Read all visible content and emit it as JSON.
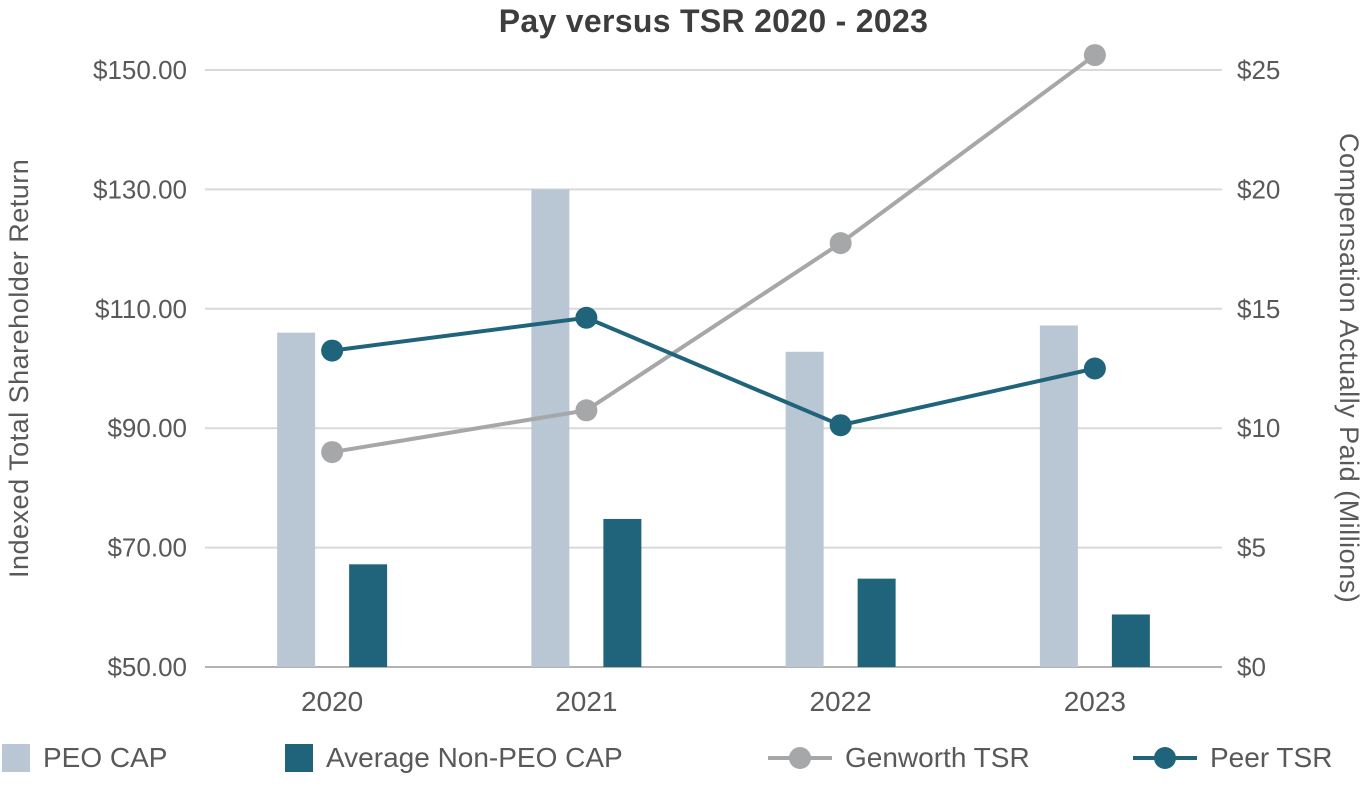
{
  "chart_data": {
    "type": "combo",
    "title": "Pay versus TSR 2020 - 2023",
    "categories": [
      "2020",
      "2021",
      "2022",
      "2023"
    ],
    "series": [
      {
        "name": "PEO CAP",
        "type": "bar",
        "axis": "right",
        "color": "#b9c6d3",
        "values": [
          14.0,
          20.0,
          13.2,
          14.3
        ]
      },
      {
        "name": "Average Non-PEO CAP",
        "type": "bar",
        "axis": "right",
        "color": "#20647c",
        "values": [
          4.3,
          6.2,
          3.7,
          2.2
        ]
      },
      {
        "name": "Genworth TSR",
        "type": "line",
        "axis": "left",
        "color": "#a6a7a9",
        "values": [
          86,
          93,
          121,
          152.5
        ]
      },
      {
        "name": "Peer TSR",
        "type": "line",
        "axis": "left",
        "color": "#20647c",
        "values": [
          103,
          108.5,
          90.5,
          100
        ]
      }
    ],
    "left_axis": {
      "label": "Indexed Total Shareholder Return",
      "min": 50,
      "max": 150,
      "step": 20,
      "tick_labels": [
        "$50.00",
        "$70.00",
        "$90.00",
        "$110.00",
        "$130.00",
        "$150.00"
      ]
    },
    "right_axis": {
      "label": "Compensation Actually Paid (Millions)",
      "min": 0,
      "max": 25,
      "step": 5,
      "tick_labels": [
        "$0",
        "$5",
        "$10",
        "$15",
        "$20",
        "$25"
      ]
    },
    "legend": [
      "PEO CAP",
      "Average Non-PEO CAP",
      "Genworth TSR",
      "Peer TSR"
    ],
    "legend_position": "bottom",
    "grid": true,
    "style": {
      "grid_color": "#d9d9d9",
      "axis_line_color": "#b3b3b3",
      "tick_text_color": "#595959",
      "title_text_color": "#3d3d3d",
      "background": "#ffffff"
    }
  }
}
